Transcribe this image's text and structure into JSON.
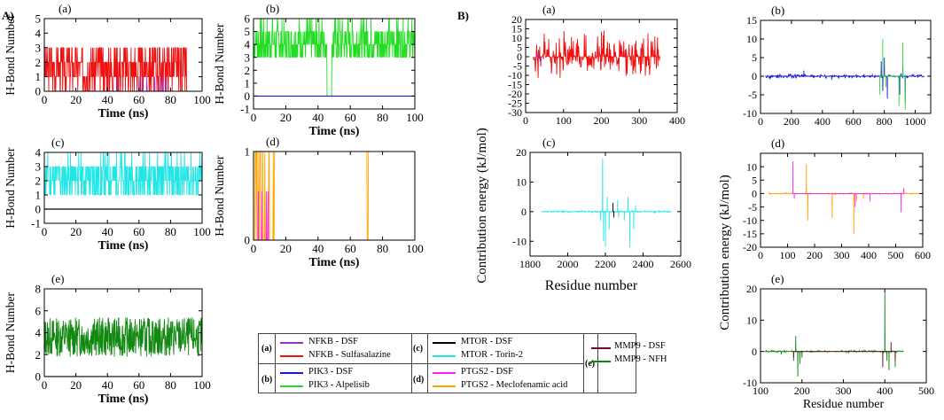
{
  "sections": {
    "A": "A)",
    "B": "B)"
  },
  "colors": {
    "nfkb_dsf": "#9b30d0",
    "nfkb_sulf": "#ee1111",
    "pik3_dsf": "#1a1ad0",
    "pik3_alp": "#22dd22",
    "mtor_dsf": "#000000",
    "mtor_torin": "#22e6e6",
    "ptgs2_dsf": "#ff22ff",
    "ptgs2_mecl": "#ffa500",
    "mmp9_dsf": "#6b0a2a",
    "mmp9_nfh": "#118811"
  },
  "legend": {
    "groups": [
      {
        "key": "(a)",
        "items": [
          {
            "label": "NFKB - DSF",
            "color": "#9b30d0"
          },
          {
            "label": "NFKB - Sulfasalazine",
            "color": "#ee1111"
          }
        ]
      },
      {
        "key": "(b)",
        "items": [
          {
            "label": "PIK3 - DSF",
            "color": "#1a1ad0"
          },
          {
            "label": "PIK3 - Alpelisib",
            "color": "#22dd22"
          }
        ]
      },
      {
        "key": "(c)",
        "items": [
          {
            "label": "MTOR - DSF",
            "color": "#000000"
          },
          {
            "label": "MTOR - Torin-2",
            "color": "#22e6e6"
          }
        ]
      },
      {
        "key": "(d)",
        "items": [
          {
            "label": "PTGS2 - DSF",
            "color": "#ff22ff"
          },
          {
            "label": "PTGS2 - Meclofenamic acid",
            "color": "#ffa500"
          }
        ]
      },
      {
        "key": "(e)",
        "items": [
          {
            "label": "MMP9 - DSF",
            "color": "#6b0a2a"
          },
          {
            "label": "MMP9 - NFH",
            "color": "#118811"
          }
        ]
      }
    ]
  },
  "chart_data": [
    {
      "id": "A_a",
      "panel_label": "(a)",
      "type": "line",
      "xlabel": "Time (ns)",
      "ylabel": "H-Bond Number",
      "xlim": [
        0,
        100
      ],
      "ylim": [
        0,
        5
      ],
      "xticks": [
        0,
        20,
        40,
        60,
        80,
        100
      ],
      "yticks": [
        0,
        1,
        2,
        3,
        4,
        5
      ],
      "series": [
        {
          "name": "NFKB - Sulfasalazine",
          "color": "#ee1111",
          "kind": "noise",
          "mean": 1.6,
          "spread": 1.6,
          "min": 0,
          "max": 5,
          "integer": true,
          "seed": 3,
          "zero_after": 90
        },
        {
          "name": "NFKB - DSF",
          "color": "#9b30d0",
          "kind": "spikes",
          "spikes": [
            [
              46,
              1
            ],
            [
              60,
              1
            ],
            [
              62,
              1
            ],
            [
              65,
              1
            ],
            [
              70,
              1
            ],
            [
              73,
              1
            ],
            [
              75,
              1
            ],
            [
              77,
              1
            ]
          ]
        }
      ]
    },
    {
      "id": "A_b",
      "panel_label": "(b)",
      "type": "line",
      "xlabel": "Time (ns)",
      "ylabel": "H-Bond Number",
      "xlim": [
        0,
        100
      ],
      "ylim": [
        -1,
        6
      ],
      "xticks": [
        0,
        20,
        40,
        60,
        80,
        100
      ],
      "yticks": [
        -1,
        0,
        1,
        2,
        3,
        4,
        5,
        6
      ],
      "series": [
        {
          "name": "PIK3 - Alpelisib",
          "color": "#22dd22",
          "kind": "noise",
          "mean": 4.2,
          "spread": 1.6,
          "min": 2,
          "max": 6,
          "integer": true,
          "seed": 7,
          "dip": [
            47,
            0
          ]
        },
        {
          "name": "PIK3 - DSF",
          "color": "#1a1ad0",
          "kind": "flat",
          "value": 0
        }
      ]
    },
    {
      "id": "A_c",
      "panel_label": "(c)",
      "type": "line",
      "xlabel": "Time (ns)",
      "ylabel": "H-Bond Number",
      "xlim": [
        0,
        100
      ],
      "ylim": [
        -1,
        4
      ],
      "xticks": [
        0,
        20,
        40,
        60,
        80,
        100
      ],
      "yticks": [
        -1,
        0,
        1,
        2,
        3,
        4
      ],
      "series": [
        {
          "name": "MTOR - Torin-2",
          "color": "#22e6e6",
          "kind": "noise",
          "mean": 2.2,
          "spread": 1.5,
          "min": 0,
          "max": 4,
          "integer": true,
          "seed": 11
        },
        {
          "name": "MTOR - DSF",
          "color": "#000000",
          "kind": "flat",
          "value": 0
        }
      ]
    },
    {
      "id": "A_d",
      "panel_label": "(d)",
      "type": "line",
      "xlabel": "Time (ns)",
      "ylabel": "H-Bond Number",
      "xlim": [
        0,
        100
      ],
      "ylim": [
        0,
        1
      ],
      "xticks": [
        0,
        20,
        40,
        60,
        80,
        100
      ],
      "yticks": [
        0,
        1
      ],
      "series": [
        {
          "name": "PTGS2 - Meclofenamic acid",
          "color": "#ffa500",
          "kind": "binary",
          "seed": 5,
          "one_after": 13,
          "gaps": [
            10,
            11.5,
            70.5,
            71
          ]
        },
        {
          "name": "PTGS2 - DSF",
          "color": "#ff22ff",
          "kind": "spikes",
          "spikes": [
            [
              3,
              0.55
            ],
            [
              5,
              0.55
            ],
            [
              8,
              0.55
            ],
            [
              9,
              0.55
            ]
          ]
        }
      ]
    },
    {
      "id": "A_e",
      "panel_label": "(e)",
      "type": "line",
      "xlabel": "Time (ns)",
      "ylabel": "H-Bond Number",
      "xlim": [
        0,
        100
      ],
      "ylim": [
        0,
        8
      ],
      "xticks": [
        0,
        20,
        40,
        60,
        80,
        100
      ],
      "yticks": [
        0,
        2,
        4,
        6,
        8
      ],
      "series": [
        {
          "name": "MMP9 - NFH",
          "color": "#118811",
          "kind": "noise",
          "mean": 3.6,
          "spread": 1.8,
          "min": 1,
          "max": 7.8,
          "integer": false,
          "seed": 13
        },
        {
          "name": "MMP9 - DSF",
          "color": "#6b0a2a",
          "kind": "flat",
          "value": 0
        }
      ]
    },
    {
      "id": "B_a",
      "panel_label": "(a)",
      "type": "line",
      "xlabel": "",
      "ylabel": "",
      "xlim": [
        0,
        400
      ],
      "ylim": [
        -30,
        20
      ],
      "xticks": [
        0,
        100,
        200,
        300,
        400
      ],
      "yticks": [
        -30,
        -25,
        -20,
        -15,
        -10,
        -5,
        0,
        5,
        10,
        15,
        20
      ],
      "series": [
        {
          "name": "NFKB - Sulfasalazine",
          "color": "#ee1111",
          "kind": "spiky",
          "xrange": [
            20,
            355
          ],
          "amp": 14,
          "seed": 17,
          "density": 0.65
        },
        {
          "name": "NFKB - DSF",
          "color": "#9b30d0",
          "kind": "spikes",
          "spikes": [
            [
              28,
              -2
            ],
            [
              33,
              3
            ],
            [
              40,
              -4
            ]
          ]
        }
      ]
    },
    {
      "id": "B_b",
      "panel_label": "(b)",
      "type": "line",
      "xlabel": "",
      "ylabel": "",
      "xlim": [
        0,
        1100
      ],
      "ylim": [
        -10,
        15
      ],
      "xticks": [
        0,
        200,
        400,
        600,
        800,
        1000
      ],
      "yticks": [
        -10,
        -5,
        0,
        5,
        10,
        15
      ],
      "series": [
        {
          "name": "PIK3 - DSF",
          "color": "#1a1ad0",
          "kind": "sparse",
          "xrange": [
            30,
            1060
          ],
          "base_amp": 0.6,
          "seed": 19,
          "spikes": [
            [
              280,
              1.5
            ],
            [
              460,
              -1
            ],
            [
              780,
              4
            ],
            [
              790,
              -4
            ],
            [
              800,
              5
            ],
            [
              820,
              -6
            ],
            [
              900,
              -5
            ],
            [
              920,
              3
            ],
            [
              935,
              -7
            ]
          ]
        },
        {
          "name": "PIK3 - Alpelisib",
          "color": "#22dd22",
          "kind": "spikes",
          "spikes": [
            [
              770,
              -5
            ],
            [
              790,
              10
            ],
            [
              810,
              -3
            ],
            [
              895,
              -8
            ],
            [
              920,
              9
            ],
            [
              935,
              -9
            ]
          ]
        }
      ]
    },
    {
      "id": "B_c",
      "panel_label": "(c)",
      "type": "line",
      "xlabel": "",
      "ylabel": "",
      "xlim": [
        1800,
        2600
      ],
      "ylim": [
        -15,
        20
      ],
      "xticks": [
        1800,
        2000,
        2200,
        2400,
        2600
      ],
      "yticks": [
        -10,
        0,
        10,
        20
      ],
      "series": [
        {
          "name": "MTOR - Torin-2",
          "color": "#22e6e6",
          "kind": "sparse",
          "xrange": [
            1860,
            2550
          ],
          "base_amp": 0.3,
          "seed": 23,
          "spikes": [
            [
              2175,
              -3
            ],
            [
              2185,
              18
            ],
            [
              2190,
              -10
            ],
            [
              2200,
              -12
            ],
            [
              2210,
              5
            ],
            [
              2220,
              -6
            ],
            [
              2265,
              4
            ],
            [
              2270,
              -2
            ],
            [
              2300,
              -3
            ],
            [
              2320,
              5
            ],
            [
              2330,
              -12
            ],
            [
              2350,
              -6
            ],
            [
              2360,
              2
            ]
          ]
        },
        {
          "name": "MTOR - DSF",
          "color": "#000000",
          "kind": "spikes",
          "spikes": [
            [
              2240,
              3
            ],
            [
              2245,
              -2
            ]
          ]
        }
      ]
    },
    {
      "id": "B_d",
      "panel_label": "(d)",
      "type": "line",
      "xlabel": "",
      "ylabel": "",
      "xlim": [
        0,
        600
      ],
      "ylim": [
        -20,
        15
      ],
      "xticks": [
        0,
        100,
        200,
        300,
        400,
        500,
        600
      ],
      "yticks": [
        -20,
        -15,
        -10,
        -5,
        0,
        5,
        10
      ],
      "series": [
        {
          "name": "PTGS2 - Meclofenamic acid",
          "color": "#ffa500",
          "kind": "sparse",
          "xrange": [
            30,
            585
          ],
          "base_amp": 0.3,
          "seed": 29,
          "spikes": [
            [
              170,
              11
            ],
            [
              175,
              -10
            ],
            [
              265,
              -9
            ],
            [
              345,
              -15
            ],
            [
              355,
              -3
            ],
            [
              380,
              -2
            ],
            [
              520,
              -4
            ],
            [
              530,
              2
            ]
          ]
        },
        {
          "name": "PTGS2 - DSF",
          "color": "#ff22ff",
          "kind": "spikes",
          "spikes": [
            [
              120,
              12
            ],
            [
              125,
              -2
            ],
            [
              350,
              -5
            ],
            [
              405,
              -3
            ],
            [
              520,
              -7
            ],
            [
              530,
              2
            ]
          ]
        }
      ]
    },
    {
      "id": "B_e",
      "panel_label": "(e)",
      "type": "line",
      "xlabel": "Residue number",
      "ylabel": "",
      "xlim": [
        100,
        500
      ],
      "ylim": [
        -10,
        20
      ],
      "xticks": [
        100,
        200,
        300,
        400,
        500
      ],
      "yticks": [
        -10,
        0,
        10,
        20
      ],
      "series": [
        {
          "name": "MMP9 - NFH",
          "color": "#118811",
          "kind": "sparse",
          "xrange": [
            110,
            445
          ],
          "base_amp": 0.3,
          "seed": 31,
          "spikes": [
            [
              150,
              -1
            ],
            [
              180,
              -3
            ],
            [
              185,
              5
            ],
            [
              190,
              -8
            ],
            [
              195,
              -4
            ],
            [
              200,
              -2
            ],
            [
              400,
              19
            ],
            [
              405,
              -3
            ],
            [
              410,
              -6
            ],
            [
              425,
              -5
            ]
          ]
        },
        {
          "name": "MMP9 - DSF",
          "color": "#6b0a2a",
          "kind": "spikes",
          "spikes": [
            [
              180,
              -2
            ],
            [
              395,
              -5
            ],
            [
              415,
              3
            ],
            [
              425,
              -3
            ]
          ]
        }
      ]
    }
  ],
  "shared_labels": {
    "A_a_d_ylabel": "H-Bond Number",
    "B_ylabel_top": "Contribution energy (kJ/mol)",
    "B_ylabel_bottom": "Contribution energy (kJ/mol)",
    "B_xlabel_left": "Residue number"
  }
}
